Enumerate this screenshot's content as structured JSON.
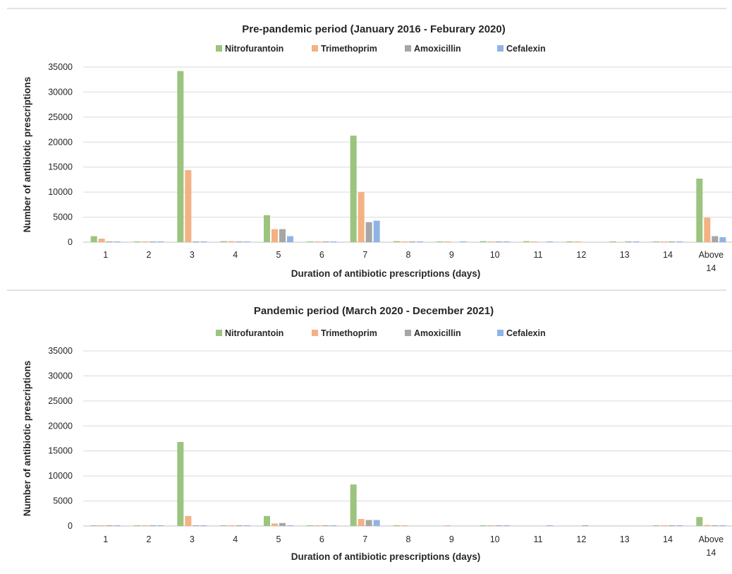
{
  "chart_data": [
    {
      "type": "bar",
      "title": "Pre-pandemic period (January 2016 - Feburary 2020)",
      "xlabel": "Duration of antibiotic prescriptions (days)",
      "ylabel": "Number of antibiotic prescriptions",
      "ylim": [
        0,
        35000
      ],
      "yticks": [
        "0",
        "5000",
        "10000",
        "15000",
        "20000",
        "25000",
        "30000",
        "35000"
      ],
      "grid": true,
      "legend": "top",
      "categories": [
        "1",
        "2",
        "3",
        "4",
        "5",
        "6",
        "7",
        "8",
        "9",
        "10",
        "11",
        "12",
        "13",
        "14",
        "Above 14"
      ],
      "category_lines": [
        [
          "1"
        ],
        [
          "2"
        ],
        [
          "3"
        ],
        [
          "4"
        ],
        [
          "5"
        ],
        [
          "6"
        ],
        [
          "7"
        ],
        [
          "8"
        ],
        [
          "9"
        ],
        [
          "10"
        ],
        [
          "11"
        ],
        [
          "12"
        ],
        [
          "13"
        ],
        [
          "14"
        ],
        [
          "Above",
          "14"
        ]
      ],
      "series": [
        {
          "name": "Nitrofurantoin",
          "color": "#9BC47E",
          "values": [
            1200,
            150,
            34200,
            200,
            5400,
            150,
            21300,
            200,
            150,
            200,
            200,
            150,
            150,
            150,
            12700
          ]
        },
        {
          "name": "Trimethoprim",
          "color": "#F4B183",
          "values": [
            700,
            150,
            14400,
            200,
            2600,
            150,
            10000,
            150,
            150,
            150,
            150,
            150,
            0,
            150,
            4900
          ]
        },
        {
          "name": "Amoxicillin",
          "color": "#A6A6A6",
          "values": [
            150,
            150,
            150,
            150,
            2600,
            150,
            4000,
            150,
            0,
            150,
            0,
            0,
            150,
            150,
            1200
          ]
        },
        {
          "name": "Cefalexin",
          "color": "#8EB4E3",
          "values": [
            150,
            150,
            150,
            150,
            1200,
            150,
            4300,
            150,
            150,
            150,
            150,
            0,
            150,
            150,
            1000
          ]
        }
      ]
    },
    {
      "type": "bar",
      "title": "Pandemic period (March 2020 - December 2021)",
      "xlabel": "Duration of antibiotic prescriptions (days)",
      "ylabel": "Number of antibiotic prescriptions",
      "ylim": [
        0,
        35000
      ],
      "yticks": [
        "0",
        "5000",
        "10000",
        "15000",
        "20000",
        "25000",
        "30000",
        "35000"
      ],
      "grid": true,
      "legend": "top",
      "categories": [
        "1",
        "2",
        "3",
        "4",
        "5",
        "6",
        "7",
        "8",
        "9",
        "10",
        "11",
        "12",
        "13",
        "14",
        "Above 14"
      ],
      "category_lines": [
        [
          "1"
        ],
        [
          "2"
        ],
        [
          "3"
        ],
        [
          "4"
        ],
        [
          "5"
        ],
        [
          "6"
        ],
        [
          "7"
        ],
        [
          "8"
        ],
        [
          "9"
        ],
        [
          "10"
        ],
        [
          "11"
        ],
        [
          "12"
        ],
        [
          "13"
        ],
        [
          "14"
        ],
        [
          "Above",
          "14"
        ]
      ],
      "series": [
        {
          "name": "Nitrofurantoin",
          "color": "#9BC47E",
          "values": [
            150,
            150,
            16800,
            150,
            2000,
            150,
            8300,
            150,
            0,
            150,
            0,
            0,
            0,
            150,
            1800
          ]
        },
        {
          "name": "Trimethoprim",
          "color": "#F4B183",
          "values": [
            150,
            150,
            2000,
            150,
            500,
            150,
            1400,
            150,
            150,
            150,
            0,
            0,
            0,
            150,
            200
          ]
        },
        {
          "name": "Amoxicillin",
          "color": "#A6A6A6",
          "values": [
            150,
            150,
            150,
            150,
            600,
            150,
            1200,
            0,
            0,
            150,
            0,
            150,
            0,
            150,
            150
          ]
        },
        {
          "name": "Cefalexin",
          "color": "#8EB4E3",
          "values": [
            150,
            150,
            150,
            150,
            150,
            150,
            1200,
            0,
            0,
            150,
            150,
            0,
            0,
            150,
            150
          ]
        }
      ]
    }
  ]
}
